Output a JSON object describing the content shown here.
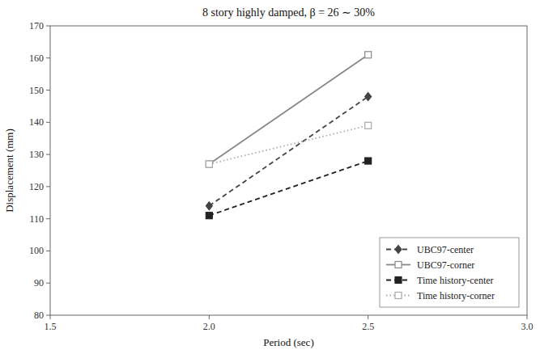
{
  "chart_data": {
    "type": "line",
    "title": "8 story highly damped, β = 26 ∼ 30%",
    "x_label": "Period (sec)",
    "y_label": "Displacement (mm)",
    "x": [
      2.0,
      2.5
    ],
    "xlim": [
      1.5,
      3.0
    ],
    "ylim": [
      80,
      170
    ],
    "xticks": [
      1.5,
      {
        "value": 2.0,
        "label": "2.0"
      },
      2.5,
      {
        "value": 3.0,
        "label": "3.0"
      }
    ],
    "yticks": [
      80,
      90,
      100,
      110,
      120,
      130,
      140,
      150,
      160,
      170
    ],
    "series": [
      {
        "name": "UBC97-center",
        "values": [
          114,
          148
        ],
        "color": "#444444",
        "line_style": "dashed",
        "marker": "diamond"
      },
      {
        "name": "UBC97-corner",
        "values": [
          127,
          161
        ],
        "color": "#888888",
        "line_style": "solid",
        "marker": "open-square"
      },
      {
        "name": "Time history-center",
        "values": [
          111,
          128
        ],
        "color": "#222222",
        "line_style": "dashed",
        "marker": "square"
      },
      {
        "name": "Time history-corner",
        "values": [
          127,
          139
        ],
        "color": "#aaaaaa",
        "line_style": "dotted",
        "marker": "open-square"
      }
    ],
    "legend": "lower right",
    "grid": false
  }
}
